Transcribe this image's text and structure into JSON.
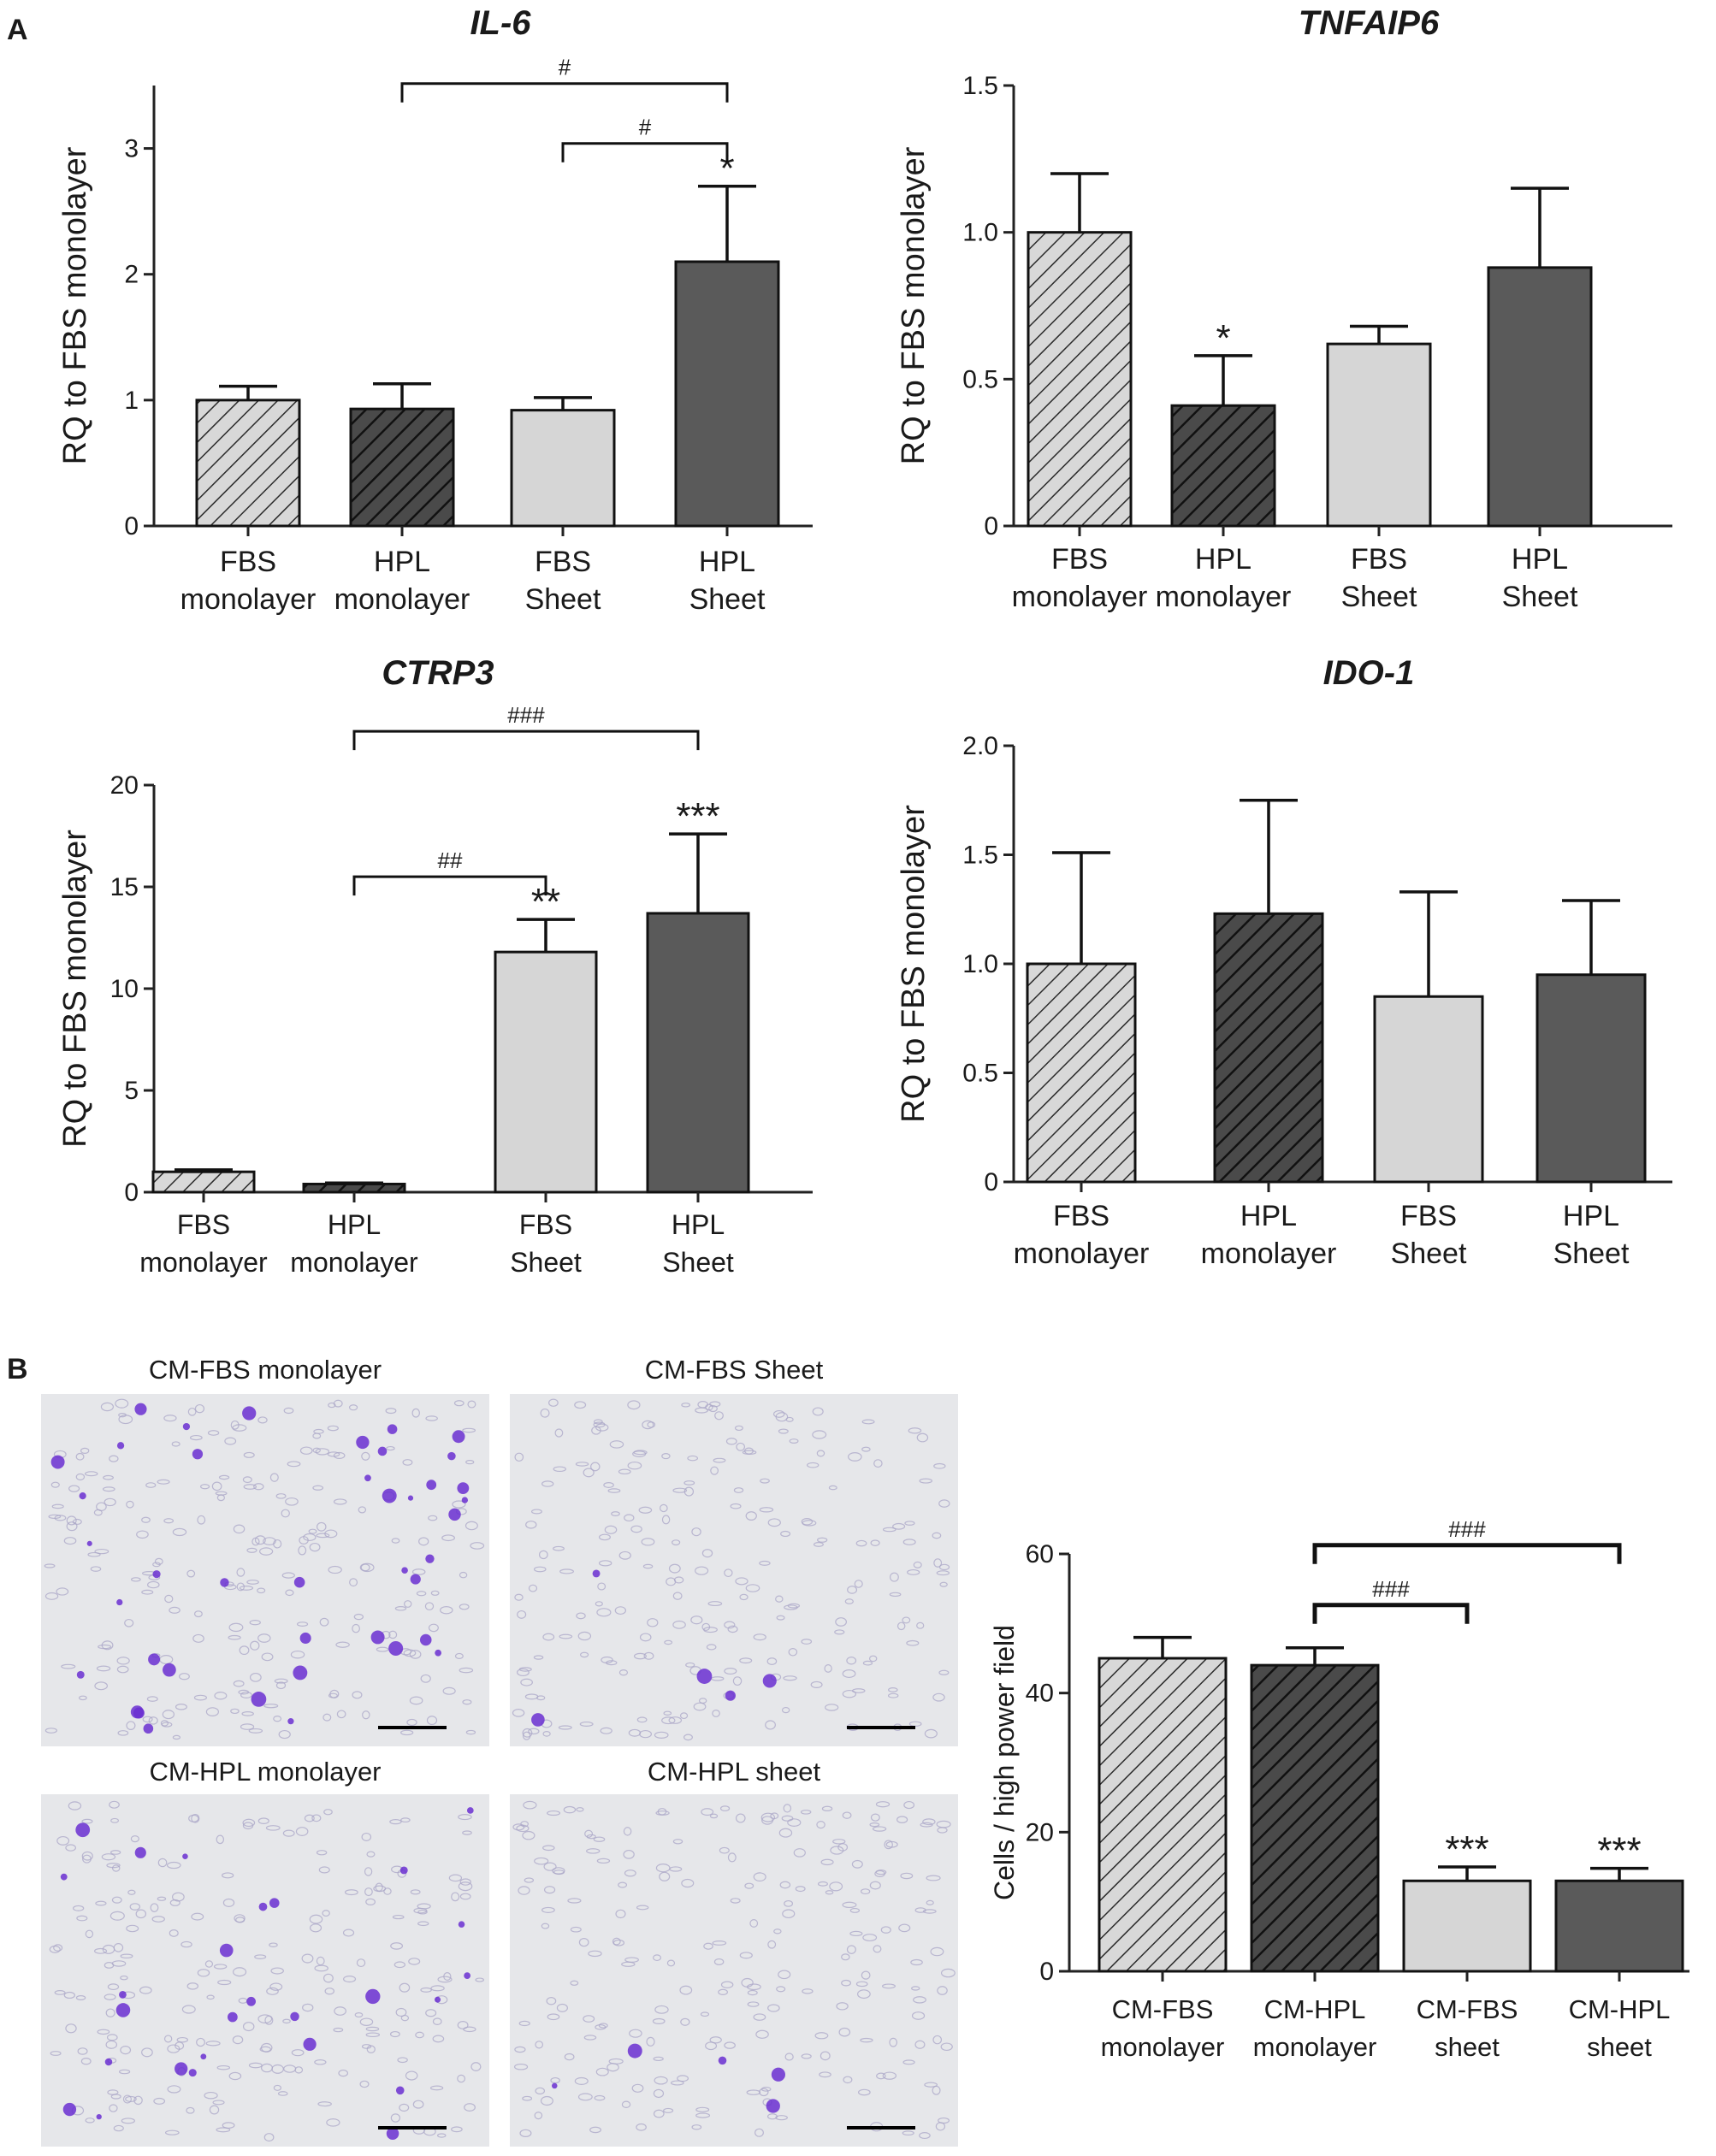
{
  "panels": [
    {
      "label": "A"
    },
    {
      "label": "B"
    }
  ],
  "chart_data": [
    {
      "type": "bar",
      "title": "IL-6",
      "ylabel": "RQ to FBS monolayer",
      "categories": [
        "FBS\nmonolayer",
        "HPL\nmonolayer",
        "FBS\nSheet",
        "HPL\nSheet"
      ],
      "values": [
        1.0,
        0.93,
        0.92,
        2.1
      ],
      "errors": [
        0.11,
        0.2,
        0.1,
        0.6
      ],
      "ylim": [
        0,
        3.5
      ],
      "yticks": [
        0,
        1,
        2,
        3
      ],
      "ytick_labels": [
        "0",
        "1",
        "2",
        "3"
      ],
      "markers": [
        "",
        "",
        "",
        "*"
      ],
      "brackets": [
        {
          "from": 1,
          "to": 3,
          "label": "#"
        },
        {
          "from": 2,
          "to": 3,
          "label": "#"
        }
      ]
    },
    {
      "type": "bar",
      "title": "TNFAIP6",
      "ylabel": "RQ to FBS monolayer",
      "categories": [
        "FBS\nmonolayer",
        "HPL\nmonolayer",
        "FBS\nSheet",
        "HPL\nSheet"
      ],
      "values": [
        1.0,
        0.41,
        0.62,
        0.88
      ],
      "errors": [
        0.2,
        0.17,
        0.06,
        0.27
      ],
      "ylim": [
        0,
        1.5
      ],
      "yticks": [
        0,
        0.5,
        1.0,
        1.5
      ],
      "ytick_labels": [
        "0",
        "0.5",
        "1.0",
        "1.5"
      ],
      "markers": [
        "",
        "*",
        "",
        ""
      ],
      "brackets": []
    },
    {
      "type": "bar",
      "title": "CTRP3",
      "ylabel": "RQ to FBS monolayer",
      "categories": [
        "FBS\nmonolayer",
        "HPL\nmonolayer",
        "FBS\nSheet",
        "HPL\nSheet"
      ],
      "values": [
        1.0,
        0.4,
        11.8,
        13.7
      ],
      "errors": [
        0.1,
        0.05,
        1.6,
        3.9
      ],
      "ylim": [
        0,
        20
      ],
      "yticks": [
        0,
        5,
        10,
        15,
        20
      ],
      "ytick_labels": [
        "0",
        "5",
        "10",
        "15",
        "20"
      ],
      "markers": [
        "",
        "",
        "**",
        "***"
      ],
      "brackets": [
        {
          "from": 1,
          "to": 2,
          "label": "##"
        },
        {
          "from": 1,
          "to": 3,
          "label": "###"
        }
      ]
    },
    {
      "type": "bar",
      "title": "IDO-1",
      "ylabel": "RQ to FBS monolayer",
      "categories": [
        "FBS\nmonolayer",
        "HPL\nmonolayer",
        "FBS\nSheet",
        "HPL\nSheet"
      ],
      "values": [
        1.0,
        1.23,
        0.85,
        0.95
      ],
      "errors": [
        0.51,
        0.52,
        0.48,
        0.34
      ],
      "ylim": [
        0,
        2.0
      ],
      "yticks": [
        0,
        0.5,
        1.0,
        1.5,
        2.0
      ],
      "ytick_labels": [
        "0",
        "0.5",
        "1.0",
        "1.5",
        "2.0"
      ],
      "markers": [
        "",
        "",
        "",
        ""
      ],
      "brackets": []
    },
    {
      "type": "bar",
      "title": "",
      "ylabel": "Cells / high power field",
      "categories": [
        "CM-FBS\nmonolayer",
        "CM-HPL\nmonolayer",
        "CM-FBS\nsheet",
        "CM-HPL\nsheet"
      ],
      "values": [
        45,
        44,
        13,
        13
      ],
      "errors": [
        3,
        2.5,
        2,
        1.8
      ],
      "ylim": [
        0,
        60
      ],
      "yticks": [
        0,
        20,
        40,
        60
      ],
      "ytick_labels": [
        "0",
        "20",
        "40",
        "60"
      ],
      "markers": [
        "",
        "",
        "***",
        "***"
      ],
      "brackets": [
        {
          "from": 1,
          "to": 2,
          "label": "###"
        },
        {
          "from": 1,
          "to": 3,
          "label": "###"
        }
      ]
    }
  ],
  "micrographs": [
    {
      "title": "CM-FBS monolayer",
      "stain_density": 0.9
    },
    {
      "title": "CM-FBS Sheet",
      "stain_density": 0.12
    },
    {
      "title": "CM-HPL monolayer",
      "stain_density": 0.6
    },
    {
      "title": "CM-HPL sheet",
      "stain_density": 0.1
    }
  ],
  "colors": {
    "bar_hatch_light": "#d8d8d8",
    "bar_hatch_dark": "#4a4a4a",
    "bar_solid_light": "#d6d6d6",
    "bar_solid_dark": "#5a5a5a",
    "micrograph_bg": "#e6e7ea",
    "cell_outline": "#a9a6c7",
    "stain": "#6a2fd1"
  }
}
